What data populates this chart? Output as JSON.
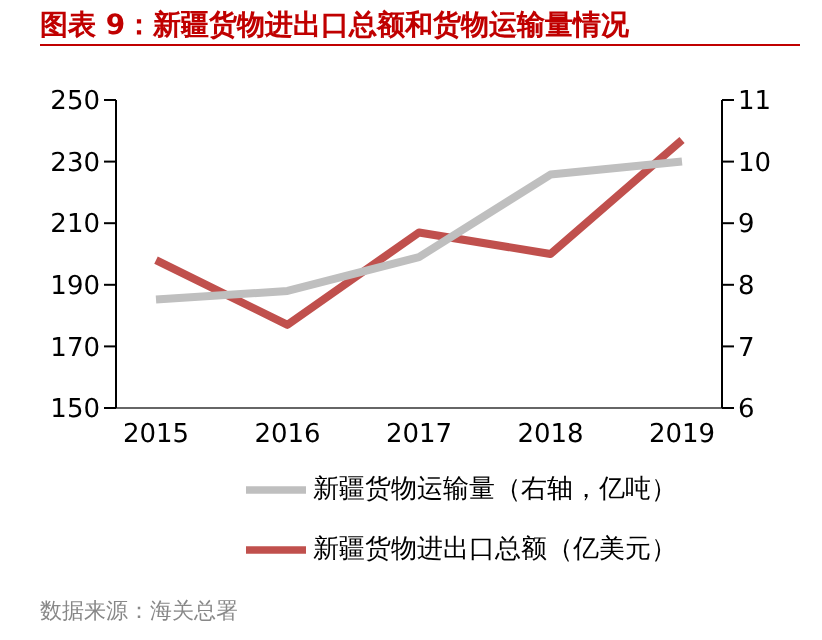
{
  "chart_data": {
    "type": "line",
    "title": "图表 9：新疆货物进出口总额和货物运输量情况",
    "categories": [
      "2015",
      "2016",
      "2017",
      "2018",
      "2019"
    ],
    "series": [
      {
        "name": "新疆货物进出口总额（亿美元）",
        "color": "#c0504d",
        "values": [
          198,
          177,
          207,
          200,
          237
        ]
      },
      {
        "name": "新疆货物运输量（右轴，亿吨）",
        "color": "#bfbfbf",
        "values": [
          7.76,
          7.9,
          8.45,
          9.79,
          10.0
        ],
        "axis": "y2"
      }
    ],
    "ylim": [
      150,
      250
    ],
    "yticks": [
      150,
      170,
      190,
      210,
      230,
      250
    ],
    "y2lim": [
      6,
      11
    ],
    "y2ticks": [
      6,
      7,
      8,
      9,
      10,
      11
    ],
    "legend": "bottom",
    "marker": "none",
    "line_style": "solid",
    "annotations": [
      "数据来源：海关总署"
    ]
  }
}
